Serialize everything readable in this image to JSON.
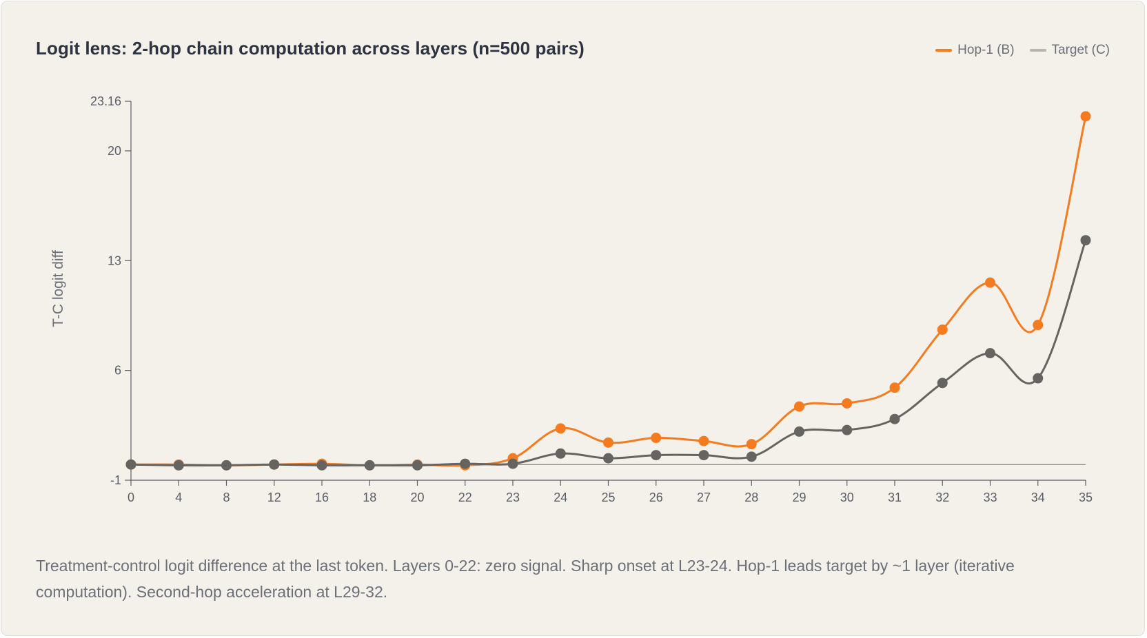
{
  "chart_data": {
    "type": "line",
    "title": "Logit lens: 2-hop chain computation across layers (n=500 pairs)",
    "xlabel": "",
    "ylabel": "T-C logit diff",
    "categories": [
      "0",
      "4",
      "8",
      "12",
      "16",
      "18",
      "20",
      "22",
      "23",
      "24",
      "25",
      "26",
      "27",
      "28",
      "29",
      "30",
      "31",
      "32",
      "33",
      "34",
      "35"
    ],
    "series": [
      {
        "name": "Hop-1 (B)",
        "color": "#f47b20",
        "values": [
          0.0,
          0.0,
          -0.05,
          0.0,
          0.05,
          -0.05,
          0.0,
          -0.05,
          0.4,
          2.3,
          1.4,
          1.7,
          1.5,
          1.3,
          3.7,
          3.9,
          4.9,
          8.6,
          11.6,
          8.9,
          22.2
        ]
      },
      {
        "name": "Target (C)",
        "color": "#666460",
        "values": [
          0.0,
          -0.05,
          -0.05,
          0.0,
          -0.05,
          -0.05,
          -0.05,
          0.05,
          0.05,
          0.7,
          0.4,
          0.6,
          0.6,
          0.5,
          2.1,
          2.2,
          2.9,
          5.2,
          7.1,
          5.5,
          14.3
        ]
      }
    ],
    "yticks": [
      "-1",
      "6",
      "13",
      "20",
      "23.16"
    ],
    "ylim": [
      -1,
      23.16
    ],
    "zero_line": true,
    "grid": false,
    "legend_position": "top-right"
  },
  "caption": "Treatment-control logit difference at the last token. Layers 0-22: zero signal. Sharp onset at L23-24. Hop-1 leads target by ~1 layer (iterative computation). Second-hop acceleration at L29-32."
}
